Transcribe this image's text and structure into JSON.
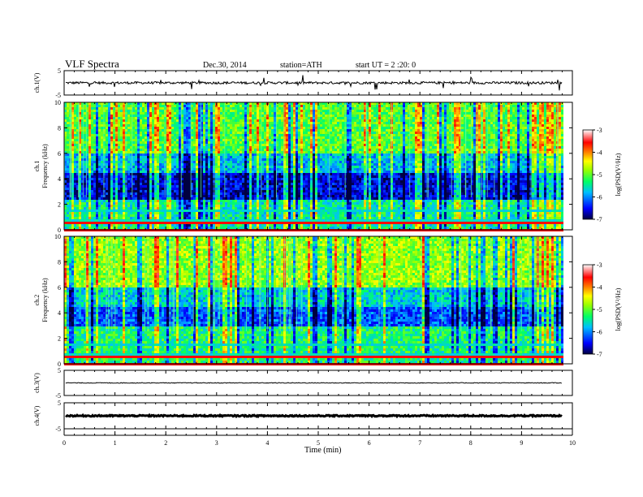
{
  "header": {
    "title": "VLF  Spectra",
    "date": "Dec.30, 2014",
    "station": "station=ATH",
    "start_ut": "start  UT  =   2  :20: 0"
  },
  "chart_data": [
    {
      "type": "line",
      "panel": "ch1_waveform",
      "ylabel": "ch.1(V)",
      "ylim": [
        -5,
        5
      ],
      "y_ticks": [
        "5",
        "-5"
      ],
      "xlim": [
        0,
        9.8
      ],
      "baseline": 0,
      "noise_amplitude": 0.5
    },
    {
      "type": "heatmap",
      "panel": "ch1_spectrogram",
      "ylabel": "ch.1\nFrequency (kHz)",
      "ylim": [
        0,
        10
      ],
      "y_ticks": [
        "0",
        "2",
        "4",
        "6",
        "8",
        "10"
      ],
      "colorbar": {
        "label": "log(PSD(V²/Hz)",
        "range": [
          -7,
          -3
        ],
        "ticks": [
          "-3",
          "-4",
          "-5",
          "-6",
          "-7"
        ]
      }
    },
    {
      "type": "heatmap",
      "panel": "ch2_spectrogram",
      "ylabel": "ch.2\nFrequency (kHz)",
      "ylim": [
        0,
        10
      ],
      "y_ticks": [
        "0",
        "2",
        "4",
        "6",
        "8",
        "10"
      ],
      "colorbar": {
        "label": "log(PSD(V²/Hz)",
        "range": [
          -7,
          -3
        ],
        "ticks": [
          "-3",
          "-4",
          "-5",
          "-6",
          "-7"
        ]
      }
    },
    {
      "type": "line",
      "panel": "ch3_waveform",
      "ylabel": "ch.3(V)",
      "ylim": [
        -5,
        5
      ],
      "y_ticks": [
        "5",
        "-5"
      ],
      "baseline": 0,
      "noise_amplitude": 0.15
    },
    {
      "type": "line",
      "panel": "ch4_waveform",
      "ylabel": "ch.4(V)",
      "ylim": [
        -5,
        5
      ],
      "y_ticks": [
        "5",
        "-5"
      ],
      "baseline": 0,
      "noise_amplitude": 0.25
    }
  ],
  "x_axis": {
    "label": "Time  (min)",
    "ticks": [
      "0",
      "1",
      "2",
      "3",
      "4",
      "5",
      "6",
      "7",
      "8",
      "9",
      "10"
    ],
    "range": [
      0,
      10
    ]
  },
  "colors": {
    "scale": [
      "#000080",
      "#0000ff",
      "#00aaff",
      "#00ffcc",
      "#00ff00",
      "#ccff00",
      "#ffff00",
      "#ff8800",
      "#ff0000",
      "#ffffff"
    ]
  }
}
